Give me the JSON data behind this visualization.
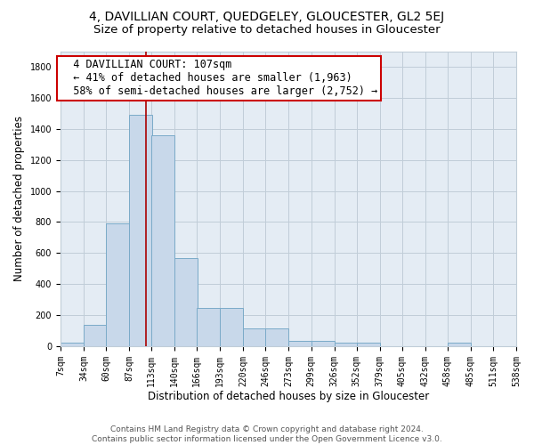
{
  "title": "4, DAVILLIAN COURT, QUEDGELEY, GLOUCESTER, GL2 5EJ",
  "subtitle": "Size of property relative to detached houses in Gloucester",
  "xlabel": "Distribution of detached houses by size in Gloucester",
  "ylabel": "Number of detached properties",
  "bar_left_edges": [
    7,
    34,
    60,
    87,
    113,
    140,
    166,
    193,
    220,
    246,
    273,
    299,
    326,
    352,
    379,
    405,
    432,
    458,
    485,
    511
  ],
  "bar_heights": [
    20,
    135,
    790,
    1490,
    1360,
    565,
    245,
    245,
    115,
    115,
    35,
    35,
    25,
    20,
    0,
    0,
    0,
    20,
    0,
    0
  ],
  "bin_width": 27,
  "bar_color": "#c8d8ea",
  "bar_edgecolor": "#7aaac8",
  "bar_linewidth": 0.7,
  "grid_color": "#c0cdd8",
  "background_color": "#e4ecf4",
  "red_line_x": 107,
  "red_line_color": "#aa0000",
  "annotation_text": "  4 DAVILLIAN COURT: 107sqm\n  ← 41% of detached houses are smaller (1,963)\n  58% of semi-detached houses are larger (2,752) →",
  "annotation_box_color": "#ffffff",
  "annotation_box_edgecolor": "#cc0000",
  "xlim": [
    7,
    538
  ],
  "ylim": [
    0,
    1900
  ],
  "yticks": [
    0,
    200,
    400,
    600,
    800,
    1000,
    1200,
    1400,
    1600,
    1800
  ],
  "xtick_labels": [
    "7sqm",
    "34sqm",
    "60sqm",
    "87sqm",
    "113sqm",
    "140sqm",
    "166sqm",
    "193sqm",
    "220sqm",
    "246sqm",
    "273sqm",
    "299sqm",
    "326sqm",
    "352sqm",
    "379sqm",
    "405sqm",
    "432sqm",
    "458sqm",
    "485sqm",
    "511sqm",
    "538sqm"
  ],
  "xtick_positions": [
    7,
    34,
    60,
    87,
    113,
    140,
    166,
    193,
    220,
    246,
    273,
    299,
    326,
    352,
    379,
    405,
    432,
    458,
    485,
    511,
    538
  ],
  "footer_text": "Contains HM Land Registry data © Crown copyright and database right 2024.\nContains public sector information licensed under the Open Government Licence v3.0.",
  "title_fontsize": 10,
  "subtitle_fontsize": 9.5,
  "xlabel_fontsize": 8.5,
  "ylabel_fontsize": 8.5,
  "tick_fontsize": 7,
  "annotation_fontsize": 8.5,
  "footer_fontsize": 6.5
}
